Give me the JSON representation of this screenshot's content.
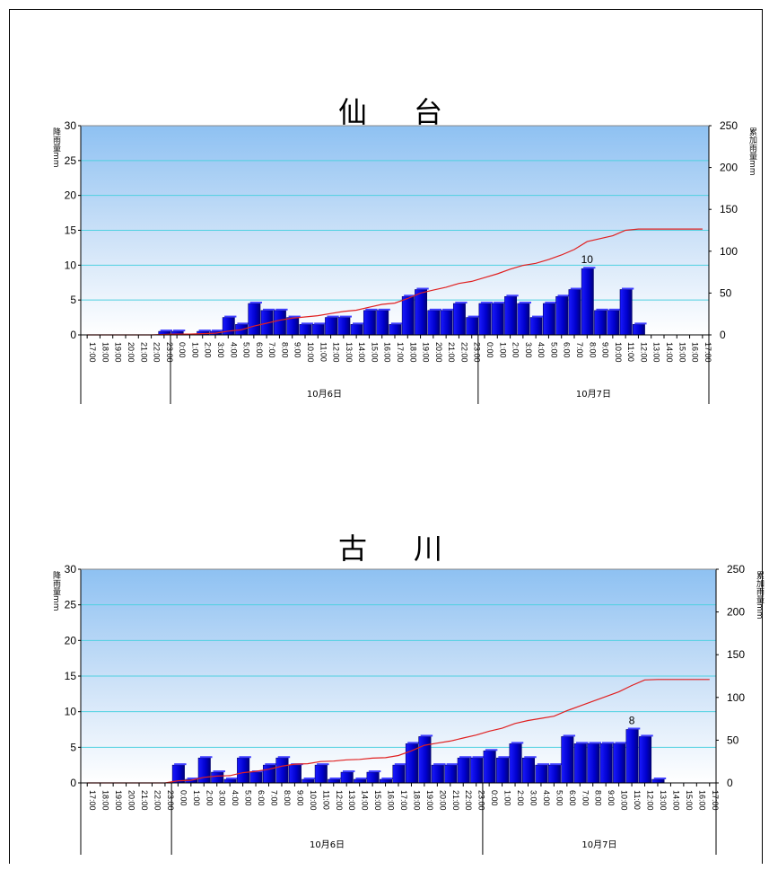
{
  "chart_data": [
    {
      "type": "bar",
      "title": "仙　台",
      "ylabel": "降雨量mm",
      "y2label": "累加雨量mm",
      "ylim": [
        0,
        30
      ],
      "yticks": [
        0,
        5,
        10,
        15,
        20,
        25,
        30
      ],
      "y2lim": [
        0,
        250
      ],
      "y2ticks": [
        0,
        50,
        100,
        150,
        200,
        250
      ],
      "categories": [
        "17:00",
        "18:00",
        "19:00",
        "20:00",
        "21:00",
        "22:00",
        "23:00",
        "0:00",
        "1:00",
        "2:00",
        "3:00",
        "4:00",
        "5:00",
        "6:00",
        "7:00",
        "8:00",
        "9:00",
        "10:00",
        "11:00",
        "12:00",
        "13:00",
        "14:00",
        "15:00",
        "16:00",
        "17:00",
        "18:00",
        "19:00",
        "20:00",
        "21:00",
        "22:00",
        "23:00",
        "0:00",
        "1:00",
        "2:00",
        "3:00",
        "4:00",
        "5:00",
        "6:00",
        "7:00",
        "8:00",
        "9:00",
        "10:00",
        "11:00",
        "12:00",
        "13:00",
        "14:00",
        "15:00",
        "16:00",
        "17:00"
      ],
      "dates": [
        {
          "label": "10月6日",
          "start": 7,
          "end": 30
        },
        {
          "label": "10月7日",
          "start": 31,
          "end": 48
        }
      ],
      "series": [
        {
          "name": "降雨量",
          "kind": "bar",
          "values": [
            0,
            0,
            0,
            0,
            0,
            0,
            0.5,
            0.5,
            0,
            0.5,
            0.5,
            2.5,
            1.5,
            4.5,
            3.5,
            3.5,
            2.5,
            1.5,
            1.5,
            2.5,
            2.5,
            1.5,
            3.5,
            3.5,
            1.5,
            5.5,
            6.5,
            3.5,
            3.5,
            4.5,
            2.5,
            4.5,
            4.5,
            5.5,
            4.5,
            2.5,
            4.5,
            5.5,
            6.5,
            9.5,
            3.5,
            3.5,
            6.5,
            1.5,
            0,
            0,
            0,
            0,
            0
          ]
        },
        {
          "name": "累加雨量",
          "kind": "line",
          "values": [
            0,
            0,
            0,
            0,
            0,
            0,
            0.5,
            1,
            1,
            1.5,
            2,
            4.5,
            6,
            10.5,
            14,
            17.5,
            20,
            21.5,
            23,
            25.5,
            28,
            29.5,
            33,
            36.5,
            38,
            43.5,
            50,
            53.5,
            57,
            61.5,
            64,
            68.5,
            73,
            78.5,
            83,
            85.5,
            90,
            95.5,
            102,
            111.5,
            115,
            118.5,
            125,
            126.5,
            126.5,
            126.5,
            126.5,
            126.5,
            126.5
          ]
        }
      ],
      "data_labels": [
        {
          "index": 39,
          "text": "10"
        }
      ]
    },
    {
      "type": "bar",
      "title": "古　川",
      "ylabel": "降雨量mm",
      "y2label": "累加雨量mm",
      "ylim": [
        0,
        30
      ],
      "yticks": [
        0,
        5,
        10,
        15,
        20,
        25,
        30
      ],
      "y2lim": [
        0,
        250
      ],
      "y2ticks": [
        0,
        50,
        100,
        150,
        200,
        250
      ],
      "categories": [
        "17:00",
        "18:00",
        "19:00",
        "20:00",
        "21:00",
        "22:00",
        "23:00",
        "0:00",
        "1:00",
        "2:00",
        "3:00",
        "4:00",
        "5:00",
        "6:00",
        "7:00",
        "8:00",
        "9:00",
        "10:00",
        "11:00",
        "12:00",
        "13:00",
        "14:00",
        "15:00",
        "16:00",
        "17:00",
        "18:00",
        "19:00",
        "20:00",
        "21:00",
        "22:00",
        "23:00",
        "0:00",
        "1:00",
        "2:00",
        "3:00",
        "4:00",
        "5:00",
        "6:00",
        "7:00",
        "8:00",
        "9:00",
        "10:00",
        "11:00",
        "12:00",
        "13:00",
        "14:00",
        "15:00",
        "16:00",
        "17:00"
      ],
      "dates": [
        {
          "label": "10月6日",
          "start": 7,
          "end": 30
        },
        {
          "label": "10月7日",
          "start": 31,
          "end": 48
        }
      ],
      "series": [
        {
          "name": "降雨量",
          "kind": "bar",
          "values": [
            0,
            0,
            0,
            0,
            0,
            0,
            0,
            2.5,
            0.5,
            3.5,
            1.5,
            0.5,
            3.5,
            1.5,
            2.5,
            3.5,
            2.5,
            0.5,
            2.5,
            0.5,
            1.5,
            0.5,
            1.5,
            0.5,
            2.5,
            5.5,
            6.5,
            2.5,
            2.5,
            3.5,
            3.5,
            4.5,
            3.5,
            5.5,
            3.5,
            2.5,
            2.5,
            6.5,
            5.5,
            5.5,
            5.5,
            5.5,
            7.5,
            6.5,
            0.5,
            0,
            0,
            0,
            0
          ]
        },
        {
          "name": "累加雨量",
          "kind": "line",
          "values": [
            0,
            0,
            0,
            0,
            0,
            0,
            0,
            2.5,
            3,
            6.5,
            8,
            8.5,
            12,
            13.5,
            16,
            19.5,
            22,
            22.5,
            25,
            25.5,
            27,
            27.5,
            29,
            29.5,
            32,
            37.5,
            44,
            46.5,
            49,
            52.5,
            56,
            60.5,
            64,
            69.5,
            73,
            75.5,
            78,
            84.5,
            90,
            95.5,
            101,
            106.5,
            114,
            120.5,
            121,
            121,
            121,
            121,
            121
          ]
        }
      ],
      "data_labels": [
        {
          "index": 42,
          "text": "8"
        }
      ]
    }
  ]
}
